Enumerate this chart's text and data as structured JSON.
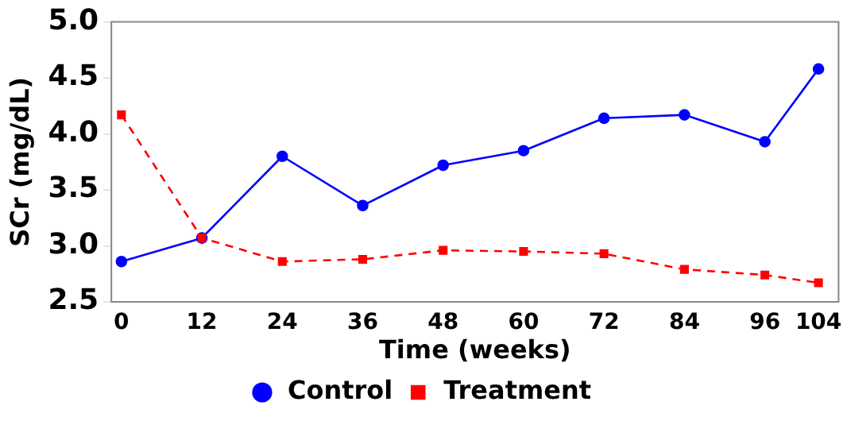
{
  "chart_data": {
    "type": "line",
    "xlabel": "Time (weeks)",
    "ylabel": "SCr (mg/dL)",
    "x": [
      0,
      12,
      24,
      36,
      48,
      60,
      72,
      84,
      96,
      104
    ],
    "series": [
      {
        "name": "Control",
        "color": "#0000ff",
        "marker": "circle",
        "line_style": "solid",
        "values": [
          2.86,
          3.07,
          3.8,
          3.36,
          3.72,
          3.85,
          4.14,
          4.17,
          3.93,
          4.58
        ]
      },
      {
        "name": "Treatment",
        "color": "#ff0000",
        "marker": "square",
        "line_style": "dashed",
        "values": [
          4.17,
          3.07,
          2.86,
          2.88,
          2.96,
          2.95,
          2.93,
          2.79,
          2.74,
          2.67
        ]
      }
    ],
    "xlim": [
      -1.5,
      107
    ],
    "xticks": [
      0,
      12,
      24,
      36,
      48,
      60,
      72,
      84,
      96,
      104
    ],
    "ylim": [
      2.5,
      5.0
    ],
    "yticks": [
      {
        "value": 2.5,
        "label": "2.5"
      },
      {
        "value": 3.0,
        "label": "3.0"
      },
      {
        "value": 3.5,
        "label": "3.5"
      },
      {
        "value": 4.0,
        "label": "4.0"
      },
      {
        "value": 4.5,
        "label": "4.5"
      },
      {
        "value": 5.0,
        "label": "5.0"
      }
    ],
    "grid": false,
    "legend": "bottom"
  }
}
